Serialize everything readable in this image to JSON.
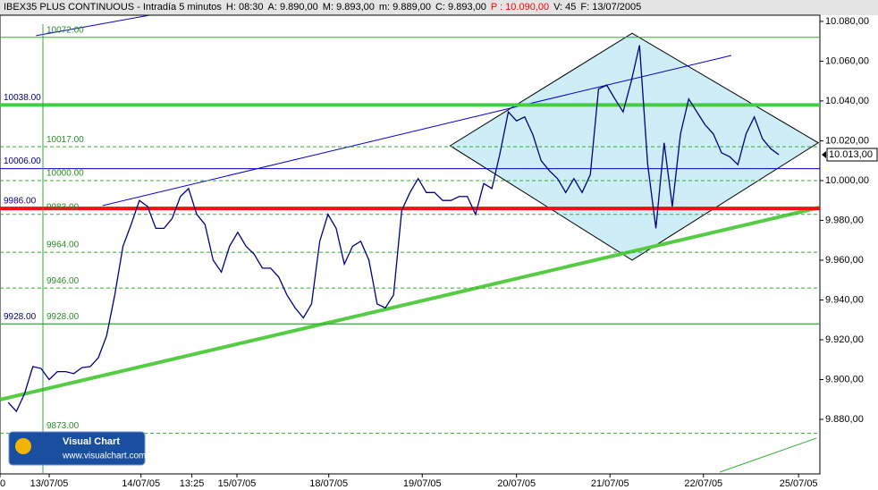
{
  "chart_data": {
    "type": "line",
    "header": [
      {
        "text": "IBEX35 PLUS CONTINUOUS - Intradía 5 minutos",
        "color": "#000000"
      },
      {
        "text": "H: 08:30",
        "color": "#000000"
      },
      {
        "text": "A: 9.890,00",
        "color": "#000000"
      },
      {
        "text": "M: 9.893,00",
        "color": "#000000"
      },
      {
        "text": "m: 9.889,00",
        "color": "#000000"
      },
      {
        "text": "C: 9.893,00",
        "color": "#000000"
      },
      {
        "text": "P : 10.090,00",
        "color": "#ff0000"
      },
      {
        "text": "V: 45",
        "color": "#000000"
      },
      {
        "text": "F: 13/07/2005",
        "color": "#000000"
      }
    ],
    "series": [
      {
        "color": "#000080",
        "values": [
          9888.5,
          9884,
          9893,
          9906.5,
          9905.6,
          9900,
          9904,
          9904,
          9903,
          9906,
          9906.5,
          9911,
          9922,
          9942.5,
          9967,
          9978,
          9990,
          9987,
          9976,
          9976,
          9981,
          9992,
          9996,
          9983,
          9978,
          9960,
          9954,
          9967,
          9974,
          9967,
          9963,
          9956,
          9956,
          9951.5,
          9942.5,
          9936,
          9931,
          9938,
          9969.5,
          9983,
          9976,
          9958,
          9967,
          9969.5,
          9960,
          9938,
          9936,
          9942.5,
          9985,
          9994,
          10001,
          9994,
          9994,
          9990,
          9990,
          9992,
          9992,
          9983,
          9998.5,
          9996,
          10014,
          10034.5,
          10030,
          10032,
          10023,
          10010,
          10005,
          10001,
          9994,
          10001,
          9994,
          10003,
          10046,
          10048,
          10041,
          10034.5,
          10050,
          10068,
          10008,
          9976,
          10019,
          9987,
          10023.5,
          10041,
          10034.5,
          10028,
          10023.5,
          10014,
          10012,
          10008,
          10023.5,
          10032,
          10021,
          10016,
          10013
        ]
      }
    ],
    "xlim": [
      -1,
      99
    ],
    "xticks": [
      {
        "value": -1,
        "label": "0"
      },
      {
        "value": 5,
        "label": "13/07/05"
      },
      {
        "value": 16.2,
        "label": "14/07/05"
      },
      {
        "value": 22.4,
        "label": "13:25"
      },
      {
        "value": 27.9,
        "label": "15/07/05"
      },
      {
        "value": 39.1,
        "label": "18/07/05"
      },
      {
        "value": 50.5,
        "label": "19/07/05"
      },
      {
        "value": 62,
        "label": "20/07/05"
      },
      {
        "value": 73.4,
        "label": "21/07/05"
      },
      {
        "value": 84.8,
        "label": "22/07/05"
      },
      {
        "value": 96.4,
        "label": "25/07/05"
      }
    ],
    "ylim": [
      9852.6,
      10083.1
    ],
    "yticks": [
      {
        "value": 9880,
        "label": "9.880,00"
      },
      {
        "value": 9900,
        "label": "9.900,00"
      },
      {
        "value": 9920,
        "label": "9.920,00"
      },
      {
        "value": 9940,
        "label": "9.940,00"
      },
      {
        "value": 9960,
        "label": "9.960,00"
      },
      {
        "value": 9980,
        "label": "9.980,00"
      },
      {
        "value": 10000,
        "label": "10.000,00"
      },
      {
        "value": 10020,
        "label": "10.020,00"
      },
      {
        "value": 10040,
        "label": "10.040,00"
      },
      {
        "value": 10060,
        "label": "10.060,00"
      },
      {
        "value": 10080,
        "label": "10.080,00"
      }
    ],
    "levels": [
      {
        "value": 10072,
        "label": "10072.00",
        "color": "#33aa33",
        "style": "solid",
        "side": "inner"
      },
      {
        "value": 10038,
        "label": "10038.00",
        "color": "#44cc44",
        "style": "thick",
        "side": "left"
      },
      {
        "value": 10017,
        "label": "10017.00",
        "color": "#33aa33",
        "style": "dashed",
        "side": "inner"
      },
      {
        "value": 10006,
        "label": "10006.00",
        "color": "#0000cc",
        "style": "solid",
        "side": "left"
      },
      {
        "value": 10000,
        "label": "10000.00",
        "color": "#33aa33",
        "style": "dashed",
        "side": "inner"
      },
      {
        "value": 9986,
        "label": "9986.00",
        "color": "#ee1111",
        "style": "thick",
        "side": "left"
      },
      {
        "value": 9983,
        "label": "9983.00",
        "color": "#33aa33",
        "style": "dashed",
        "side": "inner"
      },
      {
        "value": 9964,
        "label": "9964.00",
        "color": "#33aa33",
        "style": "dashed",
        "side": "inner"
      },
      {
        "value": 9946,
        "label": "9946.00",
        "color": "#33aa33",
        "style": "dashed",
        "side": "inner"
      },
      {
        "value": 9928,
        "label": "9928.00",
        "color": "#33aa33",
        "style": "solid",
        "side": "inner"
      },
      {
        "value": 9928,
        "label": "9928.00",
        "color": "#33aa33",
        "style": "solid",
        "side": "left"
      },
      {
        "value": 9873,
        "label": "9873.00",
        "color": "#33aa33",
        "style": "dashed",
        "side": "inner"
      }
    ],
    "drawings": [
      {
        "color": "#000000",
        "fill": "#cdeef6",
        "x": [
          53.9,
          76.1,
          98.8,
          76.1
        ],
        "values": [
          10017.5,
          10074,
          10019,
          9960
        ]
      },
      {
        "color": "#55cc44",
        "style": "thick",
        "x": [
          -1,
          99
        ],
        "values": [
          9889.9,
          9986.5
        ]
      },
      {
        "color": "#0000cc",
        "x": [
          3.4,
          27.6
        ],
        "values": [
          10072.8,
          10090.8
        ]
      },
      {
        "color": "#0000cc",
        "x": [
          11.5,
          88.2
        ],
        "values": [
          9987.4,
          10062.9
        ]
      },
      {
        "color": "#33aa33",
        "x": [
          86.8,
          98.6
        ],
        "values": [
          9853.5,
          9870.6
        ]
      }
    ],
    "last": {
      "value": 10013,
      "label": "10.013,00"
    },
    "logo": {
      "title": "Visual Chart",
      "url": "www.visualchart.com"
    }
  }
}
